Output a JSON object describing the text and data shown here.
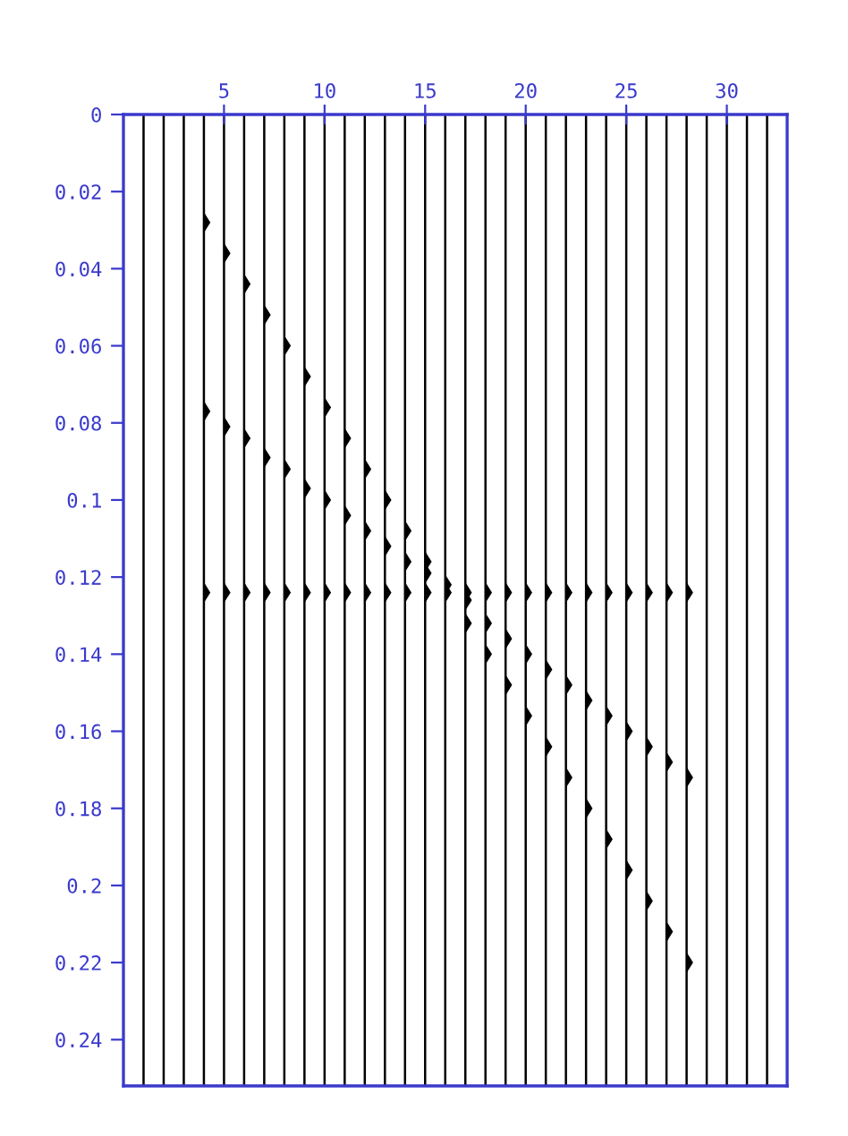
{
  "chart_data": {
    "type": "scatter",
    "marker": "triangle",
    "grid": false,
    "xlim": [
      0,
      33
    ],
    "xticks": [
      5,
      10,
      15,
      20,
      25,
      30
    ],
    "ylim": [
      0.252,
      0
    ],
    "yticks": [
      0,
      0.02,
      0.04,
      0.06,
      0.08,
      0.1,
      0.12,
      0.14,
      0.16,
      0.18,
      0.2,
      0.22,
      0.24
    ],
    "series": [
      {
        "color": "#000000",
        "x": [
          4,
          5,
          6,
          7,
          8,
          9,
          10,
          11,
          12,
          13,
          14,
          15,
          16,
          17,
          18,
          19,
          20,
          21,
          22,
          23,
          24,
          25,
          26,
          27,
          28
        ],
        "values": [
          0.028,
          0.036,
          0.044,
          0.052,
          0.06,
          0.068,
          0.076,
          0.084,
          0.092,
          0.1,
          0.108,
          0.116,
          0.124,
          0.132,
          0.14,
          0.148,
          0.156,
          0.164,
          0.172,
          0.18,
          0.188,
          0.196,
          0.204,
          0.212,
          0.22
        ]
      },
      {
        "color": "#000000",
        "x": [
          4,
          5,
          6,
          7,
          8,
          9,
          10,
          11,
          12,
          13,
          14,
          15,
          16,
          17,
          18,
          19,
          20,
          21,
          22,
          23,
          24,
          25,
          26,
          27,
          28
        ],
        "values": [
          0.077,
          0.081,
          0.084,
          0.089,
          0.092,
          0.097,
          0.1,
          0.104,
          0.108,
          0.112,
          0.116,
          0.119,
          0.122,
          0.126,
          0.132,
          0.136,
          0.14,
          0.144,
          0.148,
          0.152,
          0.156,
          0.16,
          0.164,
          0.168,
          0.172
        ]
      },
      {
        "color": "#000000",
        "x": [
          4,
          5,
          6,
          7,
          8,
          9,
          10,
          11,
          12,
          13,
          14,
          15,
          16,
          17,
          18,
          19,
          20,
          21,
          22,
          23,
          24,
          25,
          26,
          27,
          28
        ],
        "values": [
          0.124,
          0.124,
          0.124,
          0.124,
          0.124,
          0.124,
          0.124,
          0.124,
          0.124,
          0.124,
          0.124,
          0.124,
          null,
          0.124,
          0.124,
          0.124,
          0.124,
          0.124,
          0.124,
          0.124,
          0.124,
          0.124,
          0.124,
          0.124,
          0.124
        ]
      }
    ],
    "ref_lines": [
      {
        "axis": "x",
        "value": 1,
        "color": "#000000"
      },
      {
        "axis": "x",
        "value": 2,
        "color": "#000000"
      },
      {
        "axis": "x",
        "value": 3,
        "color": "#000000"
      },
      {
        "axis": "x",
        "value": 4,
        "color": "#000000"
      },
      {
        "axis": "x",
        "value": 5,
        "color": "#000000"
      },
      {
        "axis": "x",
        "value": 6,
        "color": "#000000"
      },
      {
        "axis": "x",
        "value": 7,
        "color": "#000000"
      },
      {
        "axis": "x",
        "value": 8,
        "color": "#000000"
      },
      {
        "axis": "x",
        "value": 9,
        "color": "#000000"
      },
      {
        "axis": "x",
        "value": 10,
        "color": "#000000"
      },
      {
        "axis": "x",
        "value": 11,
        "color": "#000000"
      },
      {
        "axis": "x",
        "value": 12,
        "color": "#000000"
      },
      {
        "axis": "x",
        "value": 13,
        "color": "#000000"
      },
      {
        "axis": "x",
        "value": 14,
        "color": "#000000"
      },
      {
        "axis": "x",
        "value": 15,
        "color": "#000000"
      },
      {
        "axis": "x",
        "value": 16,
        "color": "#000000"
      },
      {
        "axis": "x",
        "value": 17,
        "color": "#000000"
      },
      {
        "axis": "x",
        "value": 18,
        "color": "#000000"
      },
      {
        "axis": "x",
        "value": 19,
        "color": "#000000"
      },
      {
        "axis": "x",
        "value": 20,
        "color": "#000000"
      },
      {
        "axis": "x",
        "value": 21,
        "color": "#000000"
      },
      {
        "axis": "x",
        "value": 22,
        "color": "#000000"
      },
      {
        "axis": "x",
        "value": 23,
        "color": "#000000"
      },
      {
        "axis": "x",
        "value": 24,
        "color": "#000000"
      },
      {
        "axis": "x",
        "value": 25,
        "color": "#000000"
      },
      {
        "axis": "x",
        "value": 26,
        "color": "#000000"
      },
      {
        "axis": "x",
        "value": 27,
        "color": "#000000"
      },
      {
        "axis": "x",
        "value": 28,
        "color": "#000000"
      },
      {
        "axis": "x",
        "value": 29,
        "color": "#000000"
      },
      {
        "axis": "x",
        "value": 30,
        "color": "#000000"
      },
      {
        "axis": "x",
        "value": 31,
        "color": "#000000"
      },
      {
        "axis": "x",
        "value": 32,
        "color": "#000000"
      }
    ]
  }
}
